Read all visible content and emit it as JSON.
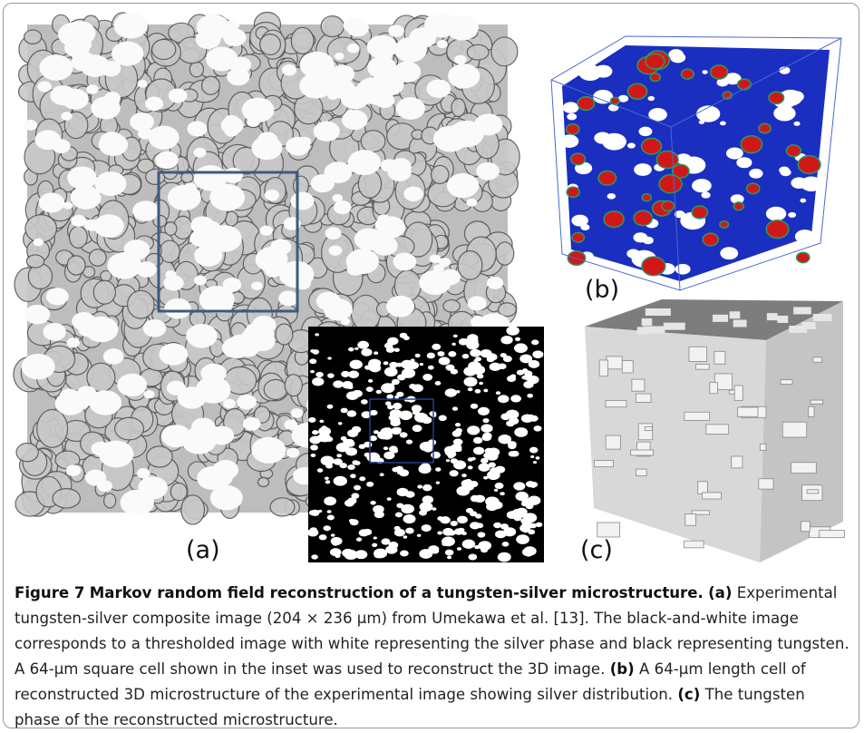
{
  "figure": {
    "panel_labels": [
      "(a)",
      "(b)",
      "(c)"
    ],
    "caption": {
      "label": "Figure 7",
      "title": "Markov random field reconstruction of a tungsten-silver microstructure.",
      "parts": [
        {
          "label": "(a)",
          "text": "Experimental tungsten-silver composite image (204 × 236 μm) from Umekawa et al. [13]. The black-and-white image corresponds to a thresholded image with white representing the silver phase and black representing tungsten. A 64-μm square cell shown in the inset was used to reconstruct the 3D image."
        },
        {
          "label": "(b)",
          "text": "A 64-μm length cell of reconstructed 3D microstructure of the experimental image showing silver distribution."
        },
        {
          "label": "(c)",
          "text": "The tungsten phase of the reconstructed microstructure."
        }
      ]
    }
  }
}
